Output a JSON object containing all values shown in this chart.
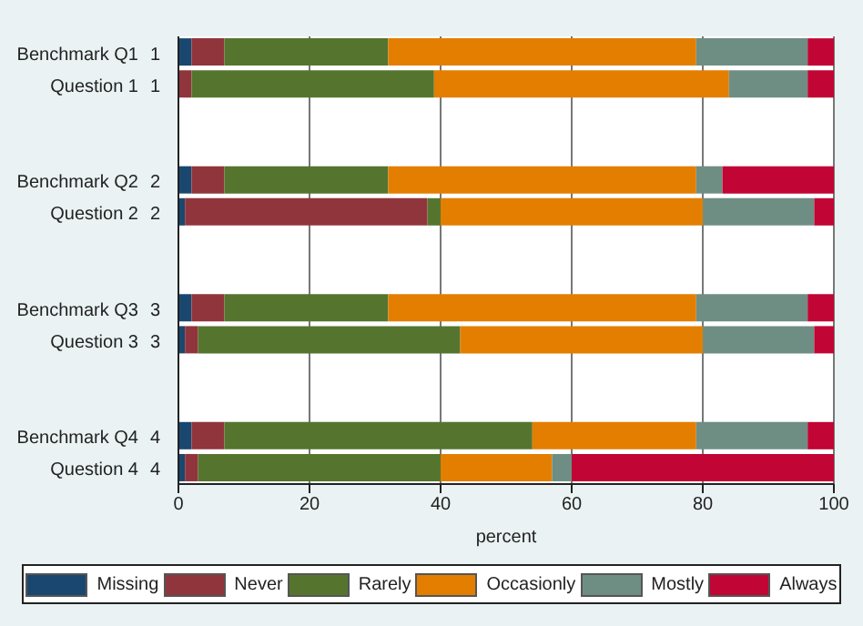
{
  "chart_data": {
    "type": "bar",
    "orientation": "horizontal",
    "stacked": true,
    "xlabel": "percent",
    "categories": [
      "Benchmark Q1 1",
      "Question 1 1",
      null,
      null,
      "Benchmark Q2 2",
      "Question 2 2",
      null,
      null,
      "Benchmark Q3 3",
      "Question 3 3",
      null,
      null,
      "Benchmark Q4 4",
      "Question 4 4"
    ],
    "series": [
      {
        "name": "Missing",
        "color": "#1a476f",
        "values": [
          2,
          0,
          null,
          null,
          2,
          1,
          null,
          null,
          2,
          1,
          null,
          null,
          2,
          1
        ]
      },
      {
        "name": "Never",
        "color": "#90353b",
        "values": [
          5,
          2,
          null,
          null,
          5,
          37,
          null,
          null,
          5,
          2,
          null,
          null,
          5,
          2
        ]
      },
      {
        "name": "Rarely",
        "color": "#55752f",
        "values": [
          25,
          37,
          null,
          null,
          25,
          2,
          null,
          null,
          25,
          40,
          null,
          null,
          47,
          37
        ]
      },
      {
        "name": "Occasionly",
        "color": "#e37e00",
        "values": [
          47,
          45,
          null,
          null,
          47,
          40,
          null,
          null,
          47,
          37,
          null,
          null,
          25,
          17
        ]
      },
      {
        "name": "Mostly",
        "color": "#6e8e84",
        "values": [
          17,
          12,
          null,
          null,
          4,
          17,
          null,
          null,
          17,
          17,
          null,
          null,
          17,
          3
        ]
      },
      {
        "name": "Always",
        "color": "#c10534",
        "values": [
          4,
          4,
          null,
          null,
          17,
          3,
          null,
          null,
          4,
          3,
          null,
          null,
          4,
          40
        ]
      }
    ],
    "xlim": [
      0,
      100
    ],
    "xticks": [
      0,
      20,
      40,
      60,
      80,
      100
    ],
    "grid": "x",
    "legend": "bottom"
  }
}
